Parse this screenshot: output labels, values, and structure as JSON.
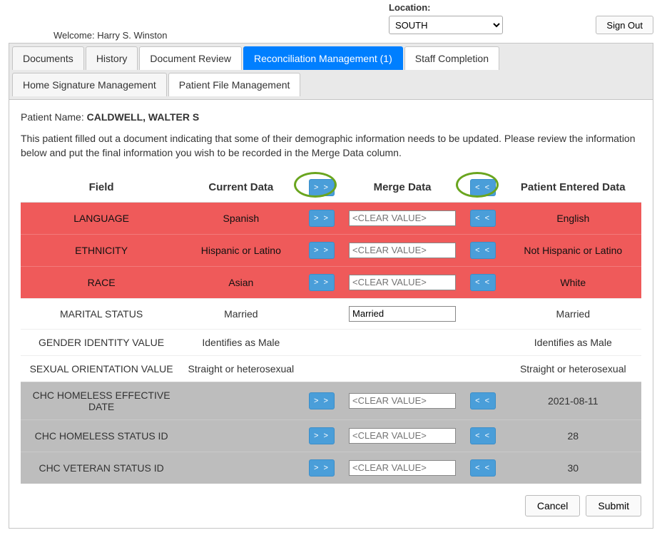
{
  "header": {
    "location_label": "Location:",
    "location_value": "SOUTH",
    "signout": "Sign Out",
    "welcome_label": "Welcome:",
    "welcome_user": "Harry S. Winston"
  },
  "tabs": {
    "row1": [
      {
        "label": "Documents",
        "active": false
      },
      {
        "label": "History",
        "active": false
      },
      {
        "label": "Document Review",
        "active": false,
        "plain": true
      },
      {
        "label": "Reconciliation Management (1)",
        "active": true
      },
      {
        "label": "Staff Completion",
        "active": false,
        "plain": true
      }
    ],
    "row2": [
      {
        "label": "Home Signature Management",
        "active": false
      },
      {
        "label": "Patient File Management",
        "active": false,
        "plain": true
      }
    ]
  },
  "patient_name_label": "Patient Name:",
  "patient_name": "CALDWELL, WALTER S",
  "intro": "This patient filled out a document indicating that some of their demographic information needs to be updated. Please review the information below and put the final information you wish to be recorded in the Merge Data column.",
  "columns": {
    "field": "Field",
    "current": "Current Data",
    "merge": "Merge Data",
    "patient": "Patient Entered Data",
    "rr": "> >",
    "ll": "< <"
  },
  "clear_placeholder": "<CLEAR VALUE>",
  "rows": [
    {
      "field": "LANGUAGE",
      "current": "Spanish",
      "merge": "",
      "patient": "English",
      "style": "conflict",
      "rr": true,
      "ll": true,
      "showInput": true
    },
    {
      "field": "ETHNICITY",
      "current": "Hispanic or Latino",
      "merge": "",
      "patient": "Not Hispanic or Latino",
      "style": "conflict",
      "rr": true,
      "ll": true,
      "showInput": true
    },
    {
      "field": "RACE",
      "current": "Asian",
      "merge": "",
      "patient": "White",
      "style": "conflict",
      "rr": true,
      "ll": true,
      "showInput": true
    },
    {
      "field": "MARITAL STATUS",
      "current": "Married",
      "merge": "Married",
      "patient": "Married",
      "style": "normal",
      "rr": false,
      "ll": false,
      "showInput": true
    },
    {
      "field": "GENDER IDENTITY VALUE",
      "current": "Identifies as Male",
      "merge": "",
      "patient": "Identifies as Male",
      "style": "normal",
      "rr": false,
      "ll": false,
      "showInput": false
    },
    {
      "field": "SEXUAL ORIENTATION VALUE",
      "current": "Straight or heterosexual",
      "merge": "",
      "patient": "Straight or heterosexual",
      "style": "normal",
      "rr": false,
      "ll": false,
      "showInput": false
    },
    {
      "field": "CHC HOMELESS EFFECTIVE DATE",
      "current": "",
      "merge": "",
      "patient": "2021-08-11",
      "style": "gray",
      "rr": true,
      "ll": true,
      "showInput": true
    },
    {
      "field": "CHC HOMELESS STATUS ID",
      "current": "",
      "merge": "",
      "patient": "28",
      "style": "gray",
      "rr": true,
      "ll": true,
      "showInput": true
    },
    {
      "field": "CHC VETERAN STATUS ID",
      "current": "",
      "merge": "",
      "patient": "30",
      "style": "gray",
      "rr": true,
      "ll": true,
      "showInput": true
    }
  ],
  "buttons": {
    "cancel": "Cancel",
    "submit": "Submit"
  },
  "colors": {
    "tab_active_bg": "#007fff",
    "conflict_bg": "#ef5a5a",
    "gray_bg": "#bdbdbd",
    "arrow_bg": "#4a9ed9",
    "circle": "#6aa51f"
  }
}
